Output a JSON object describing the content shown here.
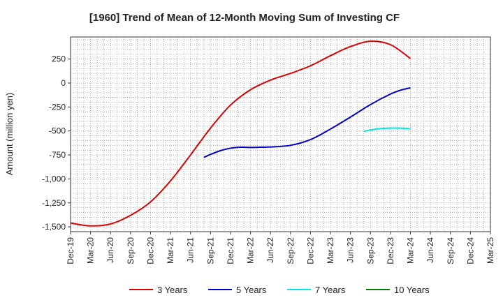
{
  "chart_data": {
    "type": "line",
    "title": "[1960]  Trend of Mean of 12-Month Moving Sum of Investing CF",
    "xlabel": "",
    "ylabel": "Amount (million yen)",
    "ylim": [
      -1550,
      480
    ],
    "y_ticks": [
      250,
      0,
      -250,
      -500,
      -750,
      -1000,
      -1250,
      -1500
    ],
    "y_tick_labels": [
      "250",
      "0",
      "-250",
      "-500",
      "-750",
      "-1,000",
      "-1,250",
      "-1,500"
    ],
    "x_ticks": [
      "Dec-19",
      "Mar-20",
      "Jun-20",
      "Sep-20",
      "Dec-20",
      "Mar-21",
      "Jun-21",
      "Sep-21",
      "Dec-21",
      "Mar-22",
      "Jun-22",
      "Sep-22",
      "Dec-22",
      "Mar-23",
      "Jun-23",
      "Sep-23",
      "Dec-23",
      "Mar-24",
      "Jun-24",
      "Sep-24",
      "Dec-24",
      "Mar-25"
    ],
    "grid": true,
    "legend_position": "bottom",
    "series": [
      {
        "name": "3 Years",
        "color": "#dd0000",
        "points": [
          [
            0,
            -1460
          ],
          [
            1,
            -1490
          ],
          [
            2,
            -1470
          ],
          [
            3,
            -1380
          ],
          [
            4,
            -1240
          ],
          [
            5,
            -1020
          ],
          [
            6,
            -750
          ],
          [
            7,
            -470
          ],
          [
            8,
            -230
          ],
          [
            9,
            -70
          ],
          [
            10,
            30
          ],
          [
            11,
            100
          ],
          [
            12,
            180
          ],
          [
            13,
            285
          ],
          [
            14,
            380
          ],
          [
            15,
            435
          ],
          [
            16,
            400
          ],
          [
            17,
            255
          ]
        ]
      },
      {
        "name": "5 Years",
        "color": "#0000cc",
        "points": [
          [
            6.67,
            -775
          ],
          [
            7,
            -745
          ],
          [
            7.5,
            -705
          ],
          [
            8,
            -680
          ],
          [
            8.5,
            -670
          ],
          [
            9,
            -672
          ],
          [
            9.5,
            -670
          ],
          [
            10,
            -667
          ],
          [
            11,
            -650
          ],
          [
            12,
            -590
          ],
          [
            13,
            -480
          ],
          [
            14,
            -355
          ],
          [
            15,
            -225
          ],
          [
            16,
            -115
          ],
          [
            16.5,
            -75
          ],
          [
            17,
            -50
          ]
        ]
      },
      {
        "name": "7 Years",
        "color": "#00e5e5",
        "points": [
          [
            14.67,
            -505
          ],
          [
            15,
            -490
          ],
          [
            15.5,
            -475
          ],
          [
            16,
            -470
          ],
          [
            16.5,
            -470
          ],
          [
            17,
            -478
          ]
        ]
      },
      {
        "name": "10 Years",
        "color": "#008000",
        "points": []
      }
    ]
  }
}
